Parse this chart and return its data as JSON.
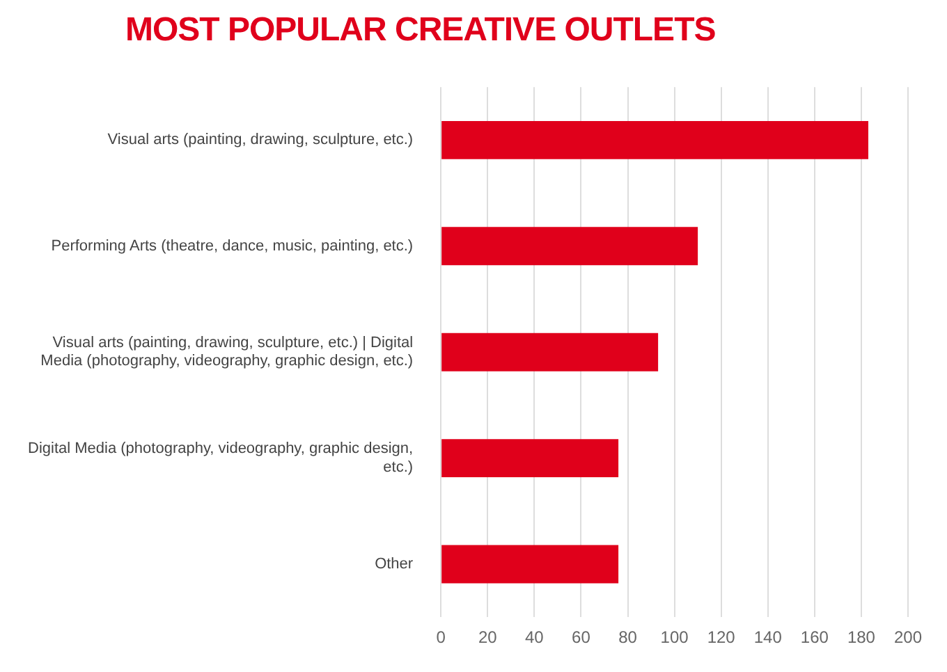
{
  "chart_data": {
    "type": "bar",
    "orientation": "horizontal",
    "title": "MOST POPULAR CREATIVE OUTLETS",
    "categories": [
      "Visual arts (painting, drawing, sculpture, etc.)",
      "Performing Arts (theatre, dance, music, painting, etc.)",
      "Visual arts (painting, drawing, sculpture, etc.) | Digital Media (photography, videography, graphic design, etc.)",
      "Digital Media (photography, videography, graphic design, etc.)",
      "Other"
    ],
    "values": [
      183,
      110,
      93,
      76,
      76
    ],
    "color": "#e0001b",
    "xlim": [
      0,
      200
    ],
    "xticks": [
      0,
      20,
      40,
      60,
      80,
      100,
      120,
      140,
      160,
      180,
      200
    ],
    "grid": "x",
    "legend": false
  }
}
